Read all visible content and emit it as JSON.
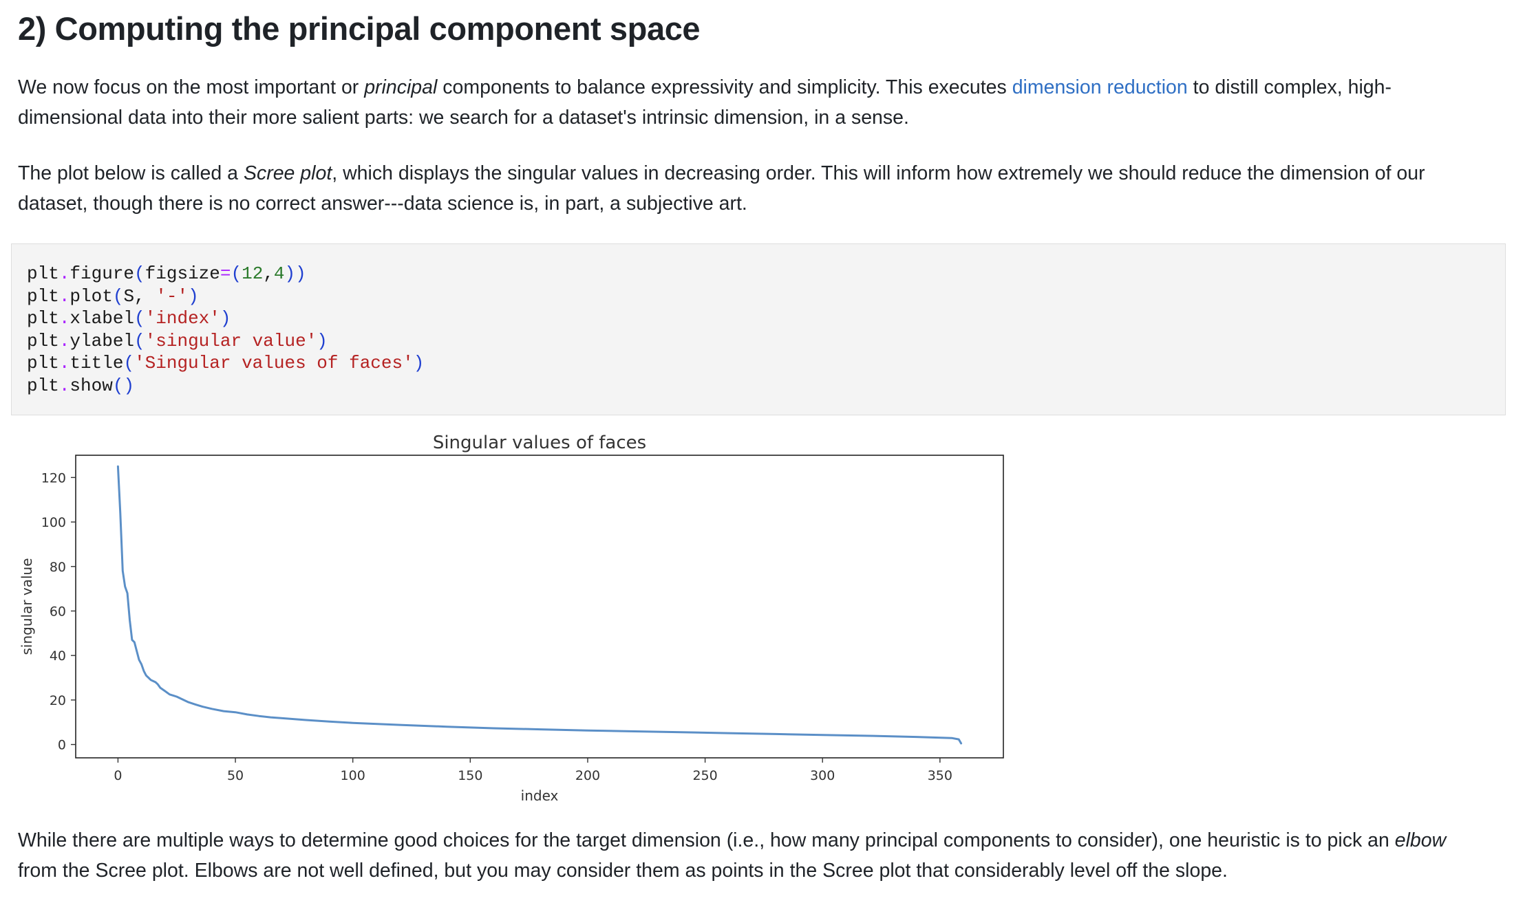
{
  "heading": "2) Computing the principal component space",
  "paragraph1": {
    "pre": "We now focus on the most important or ",
    "em": "principal",
    "mid": " components to balance expressivity and simplicity. This executes ",
    "link": "dimension reduction",
    "post": " to distill complex, high-dimensional data into their more salient parts: we search for a dataset's intrinsic dimension, in a sense."
  },
  "paragraph2": {
    "pre": "The plot below is called a ",
    "em": "Scree plot",
    "post": ", which displays the singular values in decreasing order. This will inform how extremely we should reduce the dimension of our dataset, though there is no correct answer---data science is, in part, a subjective art."
  },
  "code": {
    "lines": [
      [
        [
          "t",
          "plt"
        ],
        [
          "o",
          "."
        ],
        [
          "t",
          "figure"
        ],
        [
          "p",
          "("
        ],
        [
          "t",
          "figsize"
        ],
        [
          "o",
          "="
        ],
        [
          "p",
          "("
        ],
        [
          "n",
          "12"
        ],
        [
          "t",
          ","
        ],
        [
          "n",
          "4"
        ],
        [
          "p",
          "))"
        ]
      ],
      [
        [
          "t",
          "plt"
        ],
        [
          "o",
          "."
        ],
        [
          "t",
          "plot"
        ],
        [
          "p",
          "("
        ],
        [
          "t",
          "S, "
        ],
        [
          "s",
          "'-'"
        ],
        [
          "p",
          ")"
        ]
      ],
      [
        [
          "t",
          "plt"
        ],
        [
          "o",
          "."
        ],
        [
          "t",
          "xlabel"
        ],
        [
          "p",
          "("
        ],
        [
          "s",
          "'index'"
        ],
        [
          "p",
          ")"
        ]
      ],
      [
        [
          "t",
          "plt"
        ],
        [
          "o",
          "."
        ],
        [
          "t",
          "ylabel"
        ],
        [
          "p",
          "("
        ],
        [
          "s",
          "'singular value'"
        ],
        [
          "p",
          ")"
        ]
      ],
      [
        [
          "t",
          "plt"
        ],
        [
          "o",
          "."
        ],
        [
          "t",
          "title"
        ],
        [
          "p",
          "("
        ],
        [
          "s",
          "'Singular values of faces'"
        ],
        [
          "p",
          ")"
        ]
      ],
      [
        [
          "t",
          "plt"
        ],
        [
          "o",
          "."
        ],
        [
          "t",
          "show"
        ],
        [
          "p",
          "()"
        ]
      ]
    ]
  },
  "chart_data": {
    "type": "line",
    "title": "Singular values of faces",
    "xlabel": "index",
    "ylabel": "singular value",
    "xlim": [
      -18,
      377
    ],
    "ylim": [
      -6,
      130
    ],
    "xticks": [
      0,
      50,
      100,
      150,
      200,
      250,
      300,
      350
    ],
    "yticks": [
      0,
      20,
      40,
      60,
      80,
      100,
      120
    ],
    "color": "#5b8fc7",
    "x": [
      0,
      1,
      2,
      3,
      4,
      5,
      6,
      7,
      8,
      9,
      10,
      11,
      12,
      13,
      14,
      15,
      16,
      17,
      18,
      20,
      22,
      25,
      28,
      30,
      33,
      36,
      40,
      45,
      50,
      55,
      60,
      65,
      70,
      80,
      90,
      100,
      120,
      140,
      160,
      180,
      200,
      220,
      240,
      260,
      280,
      300,
      320,
      340,
      355,
      358,
      359
    ],
    "y": [
      125,
      104,
      78,
      71,
      68,
      56,
      47,
      46,
      42,
      38,
      36,
      33,
      31,
      30,
      29,
      28.5,
      28,
      27,
      25.5,
      24,
      22.5,
      21.5,
      20,
      19,
      18,
      17,
      16,
      15,
      14.5,
      13.5,
      12.8,
      12.2,
      11.8,
      11,
      10.3,
      9.7,
      8.8,
      8.0,
      7.3,
      6.8,
      6.3,
      5.9,
      5.5,
      5.1,
      4.7,
      4.3,
      3.9,
      3.4,
      2.9,
      2.3,
      0.5
    ]
  },
  "paragraph3": {
    "pre": "While there are multiple ways to determine good choices for the target dimension (i.e., how many principal components to consider), one heuristic is to pick an ",
    "em": "elbow",
    "post": " from the Scree plot. Elbows are not well defined, but you may consider them as points in the Scree plot that considerably level off the slope."
  }
}
